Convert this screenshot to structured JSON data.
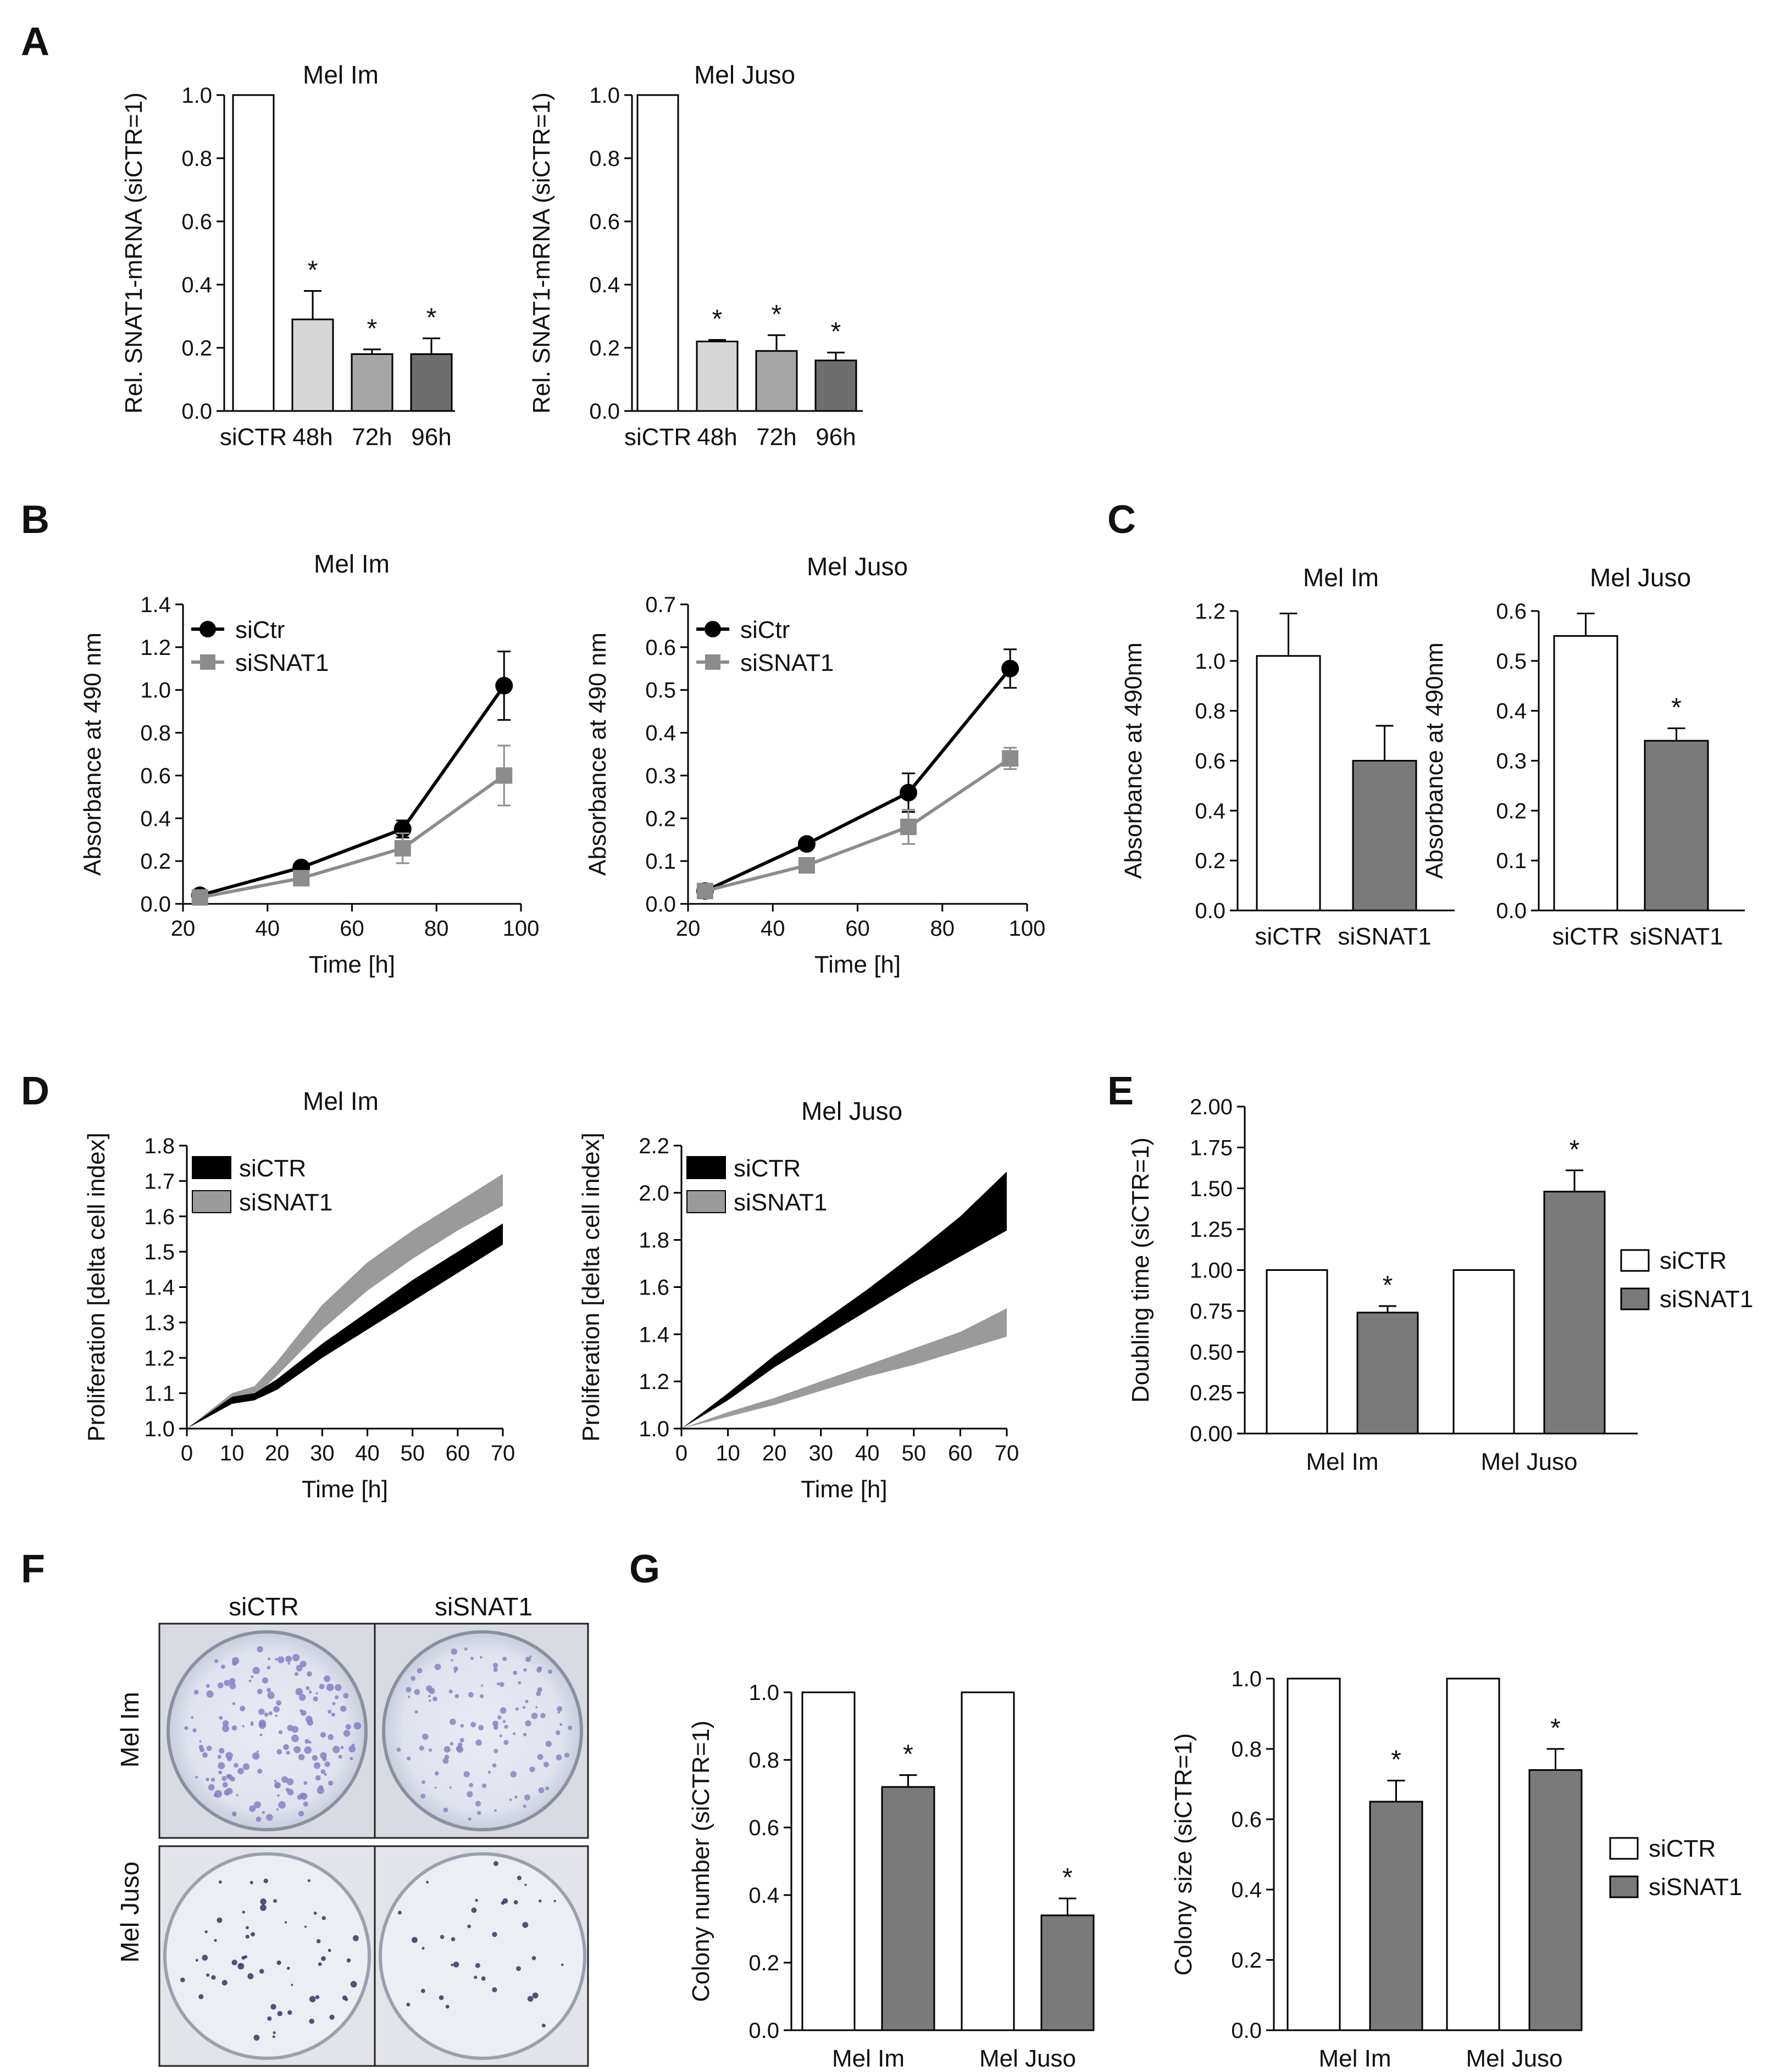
{
  "colors": {
    "white_bar": "#ffffff",
    "light_gray": "#d6d6d6",
    "mid_gray": "#a6a6a6",
    "dark_gray": "#6e6e6e",
    "black": "#000000",
    "gray_series": "#8c8c8c",
    "fill_gray": "#7a7a7a",
    "growth_gray": "#9a9a9a"
  },
  "panels": {
    "A": "A",
    "B": "B",
    "C": "C",
    "D": "D",
    "E": "E",
    "F": "F",
    "G": "G"
  },
  "chart_data": [
    {
      "id": "A1",
      "type": "bar",
      "title": "Mel Im",
      "ylabel": "Rel. SNAT1-mRNA  (siCTR=1)",
      "xlabel": "",
      "categories": [
        "siCTR",
        "48h",
        "72h",
        "96h"
      ],
      "values": [
        1.0,
        0.29,
        0.18,
        0.18
      ],
      "errors": [
        0,
        0.09,
        0.015,
        0.05
      ],
      "significant": [
        "",
        "*",
        "*",
        "*"
      ],
      "ylim": [
        0,
        1.0
      ],
      "yticks": [
        "0.0",
        "0.2",
        "0.4",
        "0.6",
        "0.8",
        "1.0"
      ]
    },
    {
      "id": "A2",
      "type": "bar",
      "title": "Mel  Juso",
      "ylabel": "Rel. SNAT1-mRNA  (siCTR=1)",
      "xlabel": "",
      "categories": [
        "siCTR",
        "48h",
        "72h",
        "96h"
      ],
      "values": [
        1.0,
        0.22,
        0.19,
        0.16
      ],
      "errors": [
        0,
        0.005,
        0.05,
        0.025
      ],
      "significant": [
        "",
        "*",
        "*",
        "*"
      ],
      "ylim": [
        0,
        1.0
      ],
      "yticks": [
        "0.0",
        "0.2",
        "0.4",
        "0.6",
        "0.8",
        "1.0"
      ]
    },
    {
      "id": "B1",
      "type": "line",
      "title": "Mel Im",
      "ylabel": "Absorbance at 490 nm",
      "xlabel": "Time  [h]",
      "x": [
        24,
        48,
        72,
        96
      ],
      "series": [
        {
          "name": "siCtr",
          "values": [
            0.04,
            0.17,
            0.35,
            1.02
          ],
          "errors": [
            0.01,
            0.01,
            0.04,
            0.16
          ]
        },
        {
          "name": "siSNAT1",
          "values": [
            0.03,
            0.12,
            0.26,
            0.6
          ],
          "errors": [
            0.01,
            0.01,
            0.07,
            0.14
          ]
        }
      ],
      "xlim": [
        20,
        100
      ],
      "ylim": [
        0,
        1.4
      ],
      "xticks": [
        "20",
        "40",
        "60",
        "80",
        "100"
      ],
      "yticks": [
        "0.0",
        "0.2",
        "0.4",
        "0.6",
        "0.8",
        "1.0",
        "1.2",
        "1.4"
      ]
    },
    {
      "id": "B2",
      "type": "line",
      "title": "Mel Juso",
      "ylabel": "Absorbance at 490 nm",
      "xlabel": "Time  [h]",
      "x": [
        24,
        48,
        72,
        96
      ],
      "series": [
        {
          "name": "siCtr",
          "values": [
            0.03,
            0.14,
            0.26,
            0.55
          ],
          "errors": [
            0.005,
            0.008,
            0.045,
            0.045
          ]
        },
        {
          "name": "siSNAT1",
          "values": [
            0.03,
            0.09,
            0.18,
            0.34
          ],
          "errors": [
            0.005,
            0.008,
            0.04,
            0.025
          ]
        }
      ],
      "xlim": [
        20,
        100
      ],
      "ylim": [
        0,
        0.7
      ],
      "xticks": [
        "20",
        "40",
        "60",
        "80",
        "100"
      ],
      "yticks": [
        "0.0",
        "0.1",
        "0.2",
        "0.3",
        "0.4",
        "0.5",
        "0.6",
        "0.7"
      ]
    },
    {
      "id": "C1",
      "type": "bar",
      "title": "Mel Im",
      "ylabel": "Absorbance at 490nm",
      "xlabel": "",
      "categories": [
        "siCTR",
        "siSNAT1"
      ],
      "values": [
        1.02,
        0.6
      ],
      "errors": [
        0.17,
        0.14
      ],
      "significant": [
        "",
        ""
      ],
      "ylim": [
        0,
        1.2
      ],
      "yticks": [
        "0.0",
        "0.2",
        "0.4",
        "0.6",
        "0.8",
        "1.0",
        "1.2"
      ]
    },
    {
      "id": "C2",
      "type": "bar",
      "title": "Mel Juso",
      "ylabel": "Absorbance at 490nm",
      "xlabel": "",
      "categories": [
        "siCTR",
        "siSNAT1"
      ],
      "values": [
        0.55,
        0.34
      ],
      "errors": [
        0.045,
        0.025
      ],
      "significant": [
        "",
        "*"
      ],
      "ylim": [
        0,
        0.6
      ],
      "yticks": [
        "0.0",
        "0.1",
        "0.2",
        "0.3",
        "0.4",
        "0.5",
        "0.6"
      ]
    },
    {
      "id": "D1",
      "type": "area",
      "title": "Mel Im",
      "ylabel": "Proliferation [delta cell index]",
      "xlabel": "Time  [h]",
      "series": [
        {
          "name": "siCTR",
          "x": [
            0,
            10,
            15,
            20,
            30,
            40,
            50,
            60,
            70
          ],
          "lower": [
            1.0,
            1.07,
            1.08,
            1.11,
            1.2,
            1.28,
            1.36,
            1.44,
            1.52
          ],
          "upper": [
            1.0,
            1.09,
            1.1,
            1.14,
            1.24,
            1.33,
            1.42,
            1.5,
            1.58
          ]
        },
        {
          "name": "siSNAT1",
          "x": [
            0,
            10,
            15,
            20,
            30,
            40,
            50,
            60,
            70
          ],
          "lower": [
            1.0,
            1.08,
            1.09,
            1.15,
            1.28,
            1.39,
            1.48,
            1.56,
            1.63
          ],
          "upper": [
            1.0,
            1.1,
            1.12,
            1.19,
            1.35,
            1.47,
            1.56,
            1.64,
            1.72
          ]
        }
      ],
      "xlim": [
        0,
        70
      ],
      "ylim": [
        1.0,
        1.8
      ],
      "xticks": [
        "0",
        "10",
        "20",
        "30",
        "40",
        "50",
        "60",
        "70"
      ],
      "yticks": [
        "1.0",
        "1.1",
        "1.2",
        "1.3",
        "1.4",
        "1.5",
        "1.6",
        "1.7",
        "1.8"
      ]
    },
    {
      "id": "D2",
      "type": "area",
      "title": "Mel Juso",
      "ylabel": "Proliferation [delta cell index]",
      "xlabel": "Time  [h]",
      "series": [
        {
          "name": "siCTR",
          "x": [
            0,
            10,
            20,
            30,
            40,
            50,
            60,
            70
          ],
          "lower": [
            1.0,
            1.12,
            1.26,
            1.38,
            1.5,
            1.62,
            1.73,
            1.84
          ],
          "upper": [
            1.0,
            1.15,
            1.31,
            1.45,
            1.59,
            1.74,
            1.9,
            2.09
          ]
        },
        {
          "name": "siSNAT1",
          "x": [
            0,
            10,
            20,
            30,
            40,
            50,
            60,
            70
          ],
          "lower": [
            1.0,
            1.05,
            1.1,
            1.16,
            1.22,
            1.27,
            1.33,
            1.39
          ],
          "upper": [
            1.0,
            1.07,
            1.13,
            1.2,
            1.27,
            1.34,
            1.41,
            1.51
          ]
        }
      ],
      "xlim": [
        0,
        70
      ],
      "ylim": [
        1.0,
        2.2
      ],
      "xticks": [
        "0",
        "10",
        "20",
        "30",
        "40",
        "50",
        "60",
        "70"
      ],
      "yticks": [
        "1.0",
        "1.2",
        "1.4",
        "1.6",
        "1.8",
        "2.0",
        "2.2"
      ]
    },
    {
      "id": "E",
      "type": "bar",
      "title": "",
      "ylabel": "Doubling time (siCTR=1)",
      "xlabel": "",
      "categories": [
        "Mel  Im",
        "Mel  Juso"
      ],
      "series": [
        {
          "name": "siCTR",
          "values": [
            1.0,
            1.0
          ],
          "errors": [
            0,
            0
          ],
          "significant": [
            "",
            ""
          ]
        },
        {
          "name": "siSNAT1",
          "values": [
            0.74,
            1.48
          ],
          "errors": [
            0.04,
            0.13
          ],
          "significant": [
            "*",
            "*"
          ]
        }
      ],
      "ylim": [
        0,
        2.0
      ],
      "yticks": [
        "0.00",
        "0.25",
        "0.50",
        "0.75",
        "1.00",
        "1.25",
        "1.50",
        "1.75",
        "2.00"
      ]
    },
    {
      "id": "G1",
      "type": "bar",
      "title": "",
      "ylabel": "Colony number  (siCTR=1)",
      "xlabel": "",
      "categories": [
        "Mel  Im",
        "Mel  Juso"
      ],
      "series": [
        {
          "name": "siCTR",
          "values": [
            1.0,
            1.0
          ],
          "errors": [
            0,
            0
          ],
          "significant": [
            "",
            ""
          ]
        },
        {
          "name": "siSNAT1",
          "values": [
            0.72,
            0.34
          ],
          "errors": [
            0.035,
            0.05
          ],
          "significant": [
            "*",
            "*"
          ]
        }
      ],
      "ylim": [
        0,
        1.0
      ],
      "yticks": [
        "0.0",
        "0.2",
        "0.4",
        "0.6",
        "0.8",
        "1.0"
      ]
    },
    {
      "id": "G2",
      "type": "bar",
      "title": "",
      "ylabel": "Colony size  (siCTR=1)",
      "xlabel": "",
      "categories": [
        "Mel  Im",
        "Mel  Juso"
      ],
      "series": [
        {
          "name": "siCTR",
          "values": [
            1.0,
            1.0
          ],
          "errors": [
            0,
            0
          ],
          "significant": [
            "",
            ""
          ]
        },
        {
          "name": "siSNAT1",
          "values": [
            0.65,
            0.74
          ],
          "errors": [
            0.06,
            0.06
          ],
          "significant": [
            "*",
            "*"
          ]
        }
      ],
      "ylim": [
        0,
        1.0
      ],
      "yticks": [
        "0.0",
        "0.2",
        "0.4",
        "0.6",
        "0.8",
        "1.0"
      ]
    }
  ],
  "photo": {
    "col_labels": [
      "siCTR",
      "siSNAT1"
    ],
    "row_labels": [
      "Mel  Im",
      "Mel  Juso"
    ]
  }
}
